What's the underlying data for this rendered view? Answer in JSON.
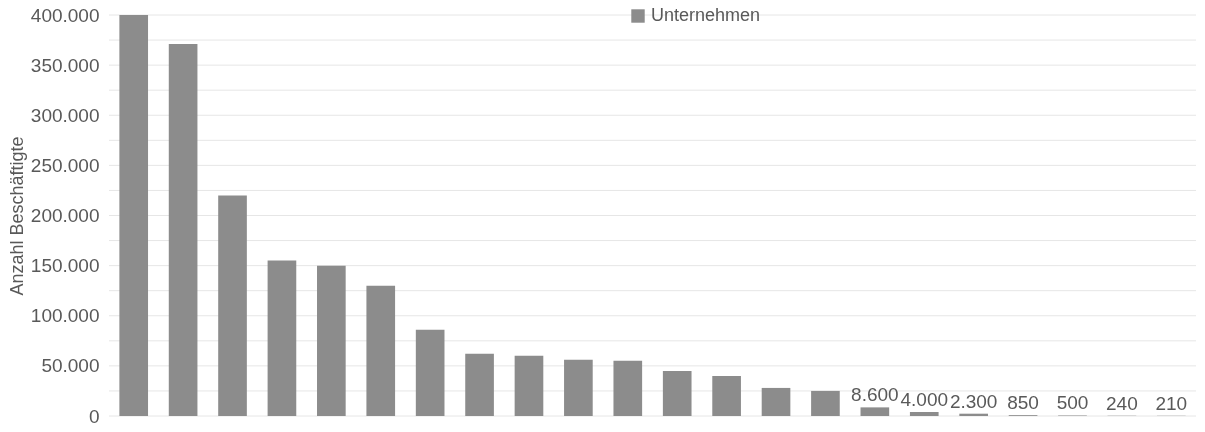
{
  "chart_data": {
    "type": "bar",
    "ylabel": "Anzahl Beschäftigte",
    "categories": [
      null,
      null,
      null,
      null,
      null,
      null,
      null,
      null,
      null,
      null,
      null,
      null,
      null,
      null,
      null,
      null,
      null,
      null,
      null,
      null,
      null,
      null
    ],
    "series": [
      {
        "name": "Unternehmen",
        "color": "#8c8c8c",
        "values": [
          400000,
          371000,
          220000,
          155000,
          150000,
          130000,
          86000,
          62000,
          60000,
          56000,
          55000,
          45000,
          40000,
          28000,
          25000,
          8600,
          4000,
          2300,
          850,
          500,
          240,
          210
        ],
        "value_labels": [
          null,
          null,
          null,
          null,
          null,
          null,
          null,
          null,
          null,
          null,
          null,
          null,
          null,
          null,
          null,
          "8.600",
          "4.000",
          "2.300",
          "850",
          "500",
          "240",
          "210"
        ]
      }
    ],
    "ylim": [
      0,
      400000
    ],
    "yticks": [
      {
        "value": 0,
        "label": "0"
      },
      {
        "value": 25000,
        "label": null
      },
      {
        "value": 50000,
        "label": "50.000"
      },
      {
        "value": 75000,
        "label": null
      },
      {
        "value": 100000,
        "label": "100.000"
      },
      {
        "value": 125000,
        "label": null
      },
      {
        "value": 150000,
        "label": "150.000"
      },
      {
        "value": 175000,
        "label": null
      },
      {
        "value": 200000,
        "label": "200.000"
      },
      {
        "value": 225000,
        "label": null
      },
      {
        "value": 250000,
        "label": "250.000"
      },
      {
        "value": 275000,
        "label": null
      },
      {
        "value": 300000,
        "label": "300.000"
      },
      {
        "value": 325000,
        "label": null
      },
      {
        "value": 350000,
        "label": "350.000"
      },
      {
        "value": 375000,
        "label": null
      },
      {
        "value": 400000,
        "label": "400.000"
      }
    ],
    "grid": "y",
    "legend": "top",
    "tick_labels": "y"
  }
}
